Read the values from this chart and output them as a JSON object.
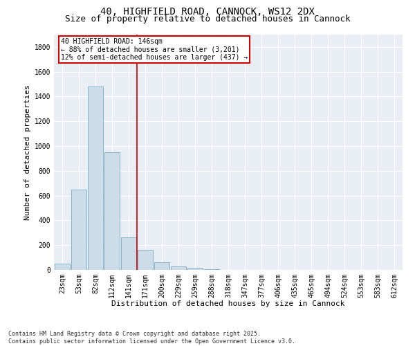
{
  "title_line1": "40, HIGHFIELD ROAD, CANNOCK, WS12 2DX",
  "title_line2": "Size of property relative to detached houses in Cannock",
  "xlabel": "Distribution of detached houses by size in Cannock",
  "ylabel": "Number of detached properties",
  "categories": [
    "23sqm",
    "53sqm",
    "82sqm",
    "112sqm",
    "141sqm",
    "171sqm",
    "200sqm",
    "229sqm",
    "259sqm",
    "288sqm",
    "318sqm",
    "347sqm",
    "377sqm",
    "406sqm",
    "435sqm",
    "465sqm",
    "494sqm",
    "524sqm",
    "553sqm",
    "583sqm",
    "612sqm"
  ],
  "values": [
    50,
    650,
    1480,
    950,
    265,
    160,
    60,
    30,
    15,
    5,
    2,
    1,
    1,
    0,
    0,
    0,
    0,
    0,
    0,
    0,
    0
  ],
  "bar_color": "#ccdce8",
  "bar_edge_color": "#7aaac8",
  "vline_color": "#cc0000",
  "annotation_title": "40 HIGHFIELD ROAD: 146sqm",
  "annotation_line2": "← 88% of detached houses are smaller (3,201)",
  "annotation_line3": "12% of semi-detached houses are larger (437) →",
  "annotation_box_color": "#cc0000",
  "ylim": [
    0,
    1900
  ],
  "yticks": [
    0,
    200,
    400,
    600,
    800,
    1000,
    1200,
    1400,
    1600,
    1800
  ],
  "bg_color": "#e8eef4",
  "footer_line1": "Contains HM Land Registry data © Crown copyright and database right 2025.",
  "footer_line2": "Contains public sector information licensed under the Open Government Licence v3.0.",
  "title_fontsize": 10,
  "subtitle_fontsize": 9,
  "tick_fontsize": 7,
  "axis_label_fontsize": 8,
  "footer_fontsize": 6,
  "annot_fontsize": 7
}
